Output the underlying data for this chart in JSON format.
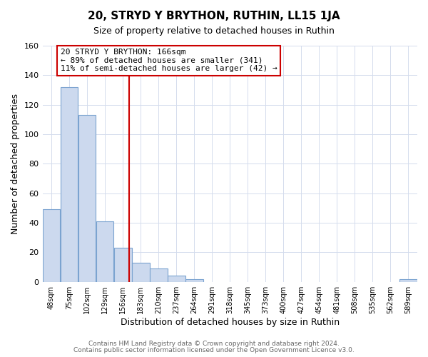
{
  "title": "20, STRYD Y BRYTHON, RUTHIN, LL15 1JA",
  "subtitle": "Size of property relative to detached houses in Ruthin",
  "xlabel": "Distribution of detached houses by size in Ruthin",
  "ylabel": "Number of detached properties",
  "bin_labels": [
    "48sqm",
    "75sqm",
    "102sqm",
    "129sqm",
    "156sqm",
    "183sqm",
    "210sqm",
    "237sqm",
    "264sqm",
    "291sqm",
    "318sqm",
    "345sqm",
    "373sqm",
    "400sqm",
    "427sqm",
    "454sqm",
    "481sqm",
    "508sqm",
    "535sqm",
    "562sqm",
    "589sqm"
  ],
  "bin_edges": [
    34.5,
    61.5,
    88.5,
    115.5,
    142.5,
    169.5,
    196.5,
    223.5,
    250.5,
    277.5,
    304.5,
    331.5,
    358.5,
    385.5,
    412.5,
    439.5,
    466.5,
    493.5,
    520.5,
    547.5,
    574.5,
    601.5
  ],
  "bar_heights": [
    49,
    132,
    113,
    41,
    23,
    13,
    9,
    4,
    2,
    0,
    0,
    0,
    0,
    0,
    0,
    0,
    0,
    0,
    0,
    0,
    2
  ],
  "bar_color": "#ccd9ee",
  "bar_edge_color": "#7ba3d0",
  "red_line_x": 166,
  "annotation_title": "20 STRYD Y BRYTHON: 166sqm",
  "annotation_line1": "← 89% of detached houses are smaller (341)",
  "annotation_line2": "11% of semi-detached houses are larger (42) →",
  "annotation_box_facecolor": "#ffffff",
  "annotation_box_edgecolor": "#cc0000",
  "grid_color": "#d4dced",
  "ax_background_color": "#ffffff",
  "fig_background_color": "#ffffff",
  "footer_line1": "Contains HM Land Registry data © Crown copyright and database right 2024.",
  "footer_line2": "Contains public sector information licensed under the Open Government Licence v3.0.",
  "ylim": [
    0,
    160
  ],
  "yticks": [
    0,
    20,
    40,
    60,
    80,
    100,
    120,
    140,
    160
  ]
}
